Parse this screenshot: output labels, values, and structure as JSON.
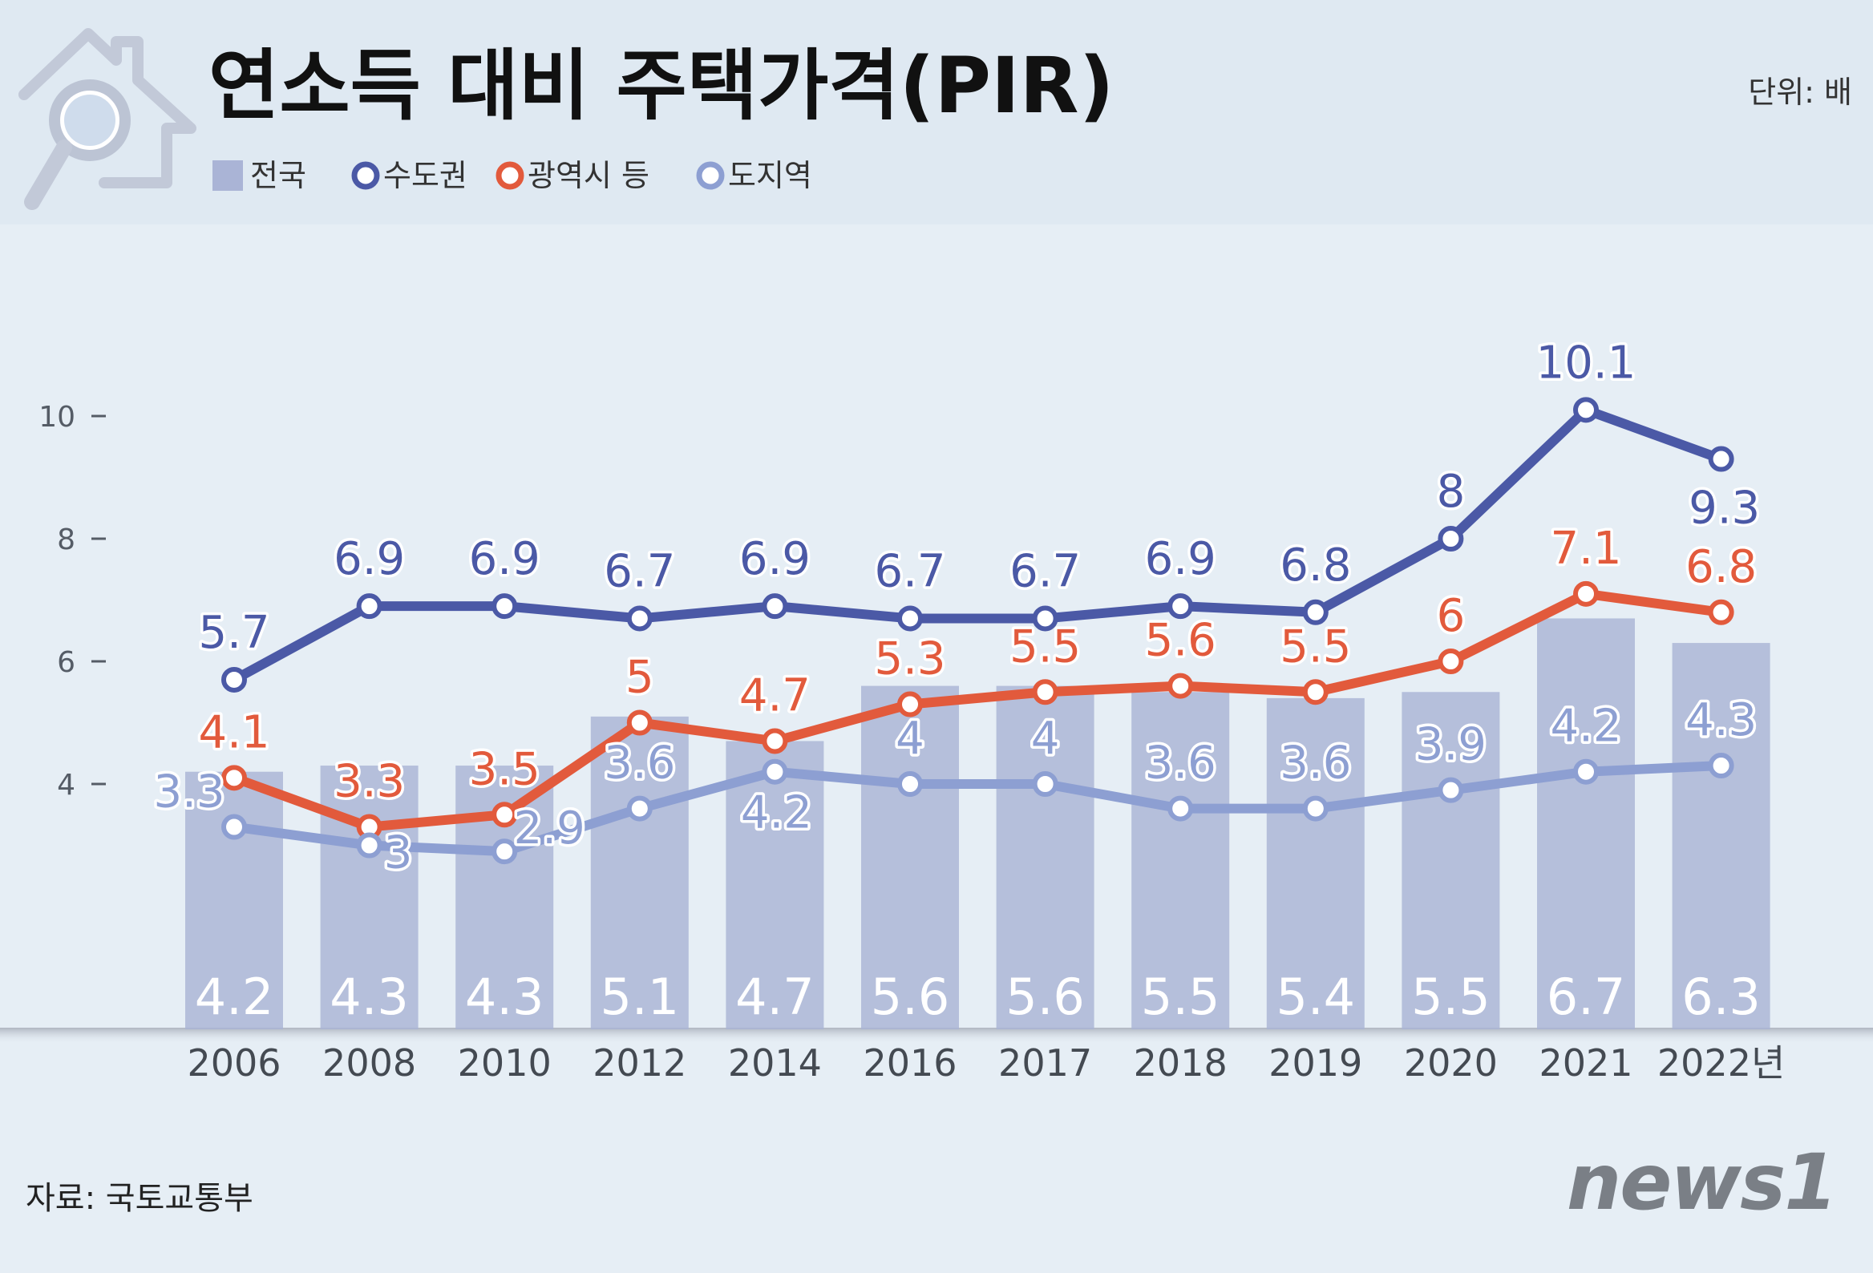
{
  "header": {
    "title": "연소득 대비 주택가격(PIR)",
    "unit": "단위: 배"
  },
  "legend": [
    {
      "label": "전국",
      "shape": "bar",
      "color": "#aab4d6"
    },
    {
      "label": "수도권",
      "shape": "ring",
      "color": "#4b59a6"
    },
    {
      "label": "광역시 등",
      "shape": "ring",
      "color": "#e25a3c"
    },
    {
      "label": "도지역",
      "shape": "ring",
      "color": "#8d9fd2"
    }
  ],
  "footer": {
    "source": "자료: 국토교통부",
    "logo_text": "news1"
  },
  "chart_data": {
    "type": "bar",
    "title": "연소득 대비 주택가격(PIR)",
    "unit": "단위: 배",
    "categories": [
      "2006",
      "2008",
      "2010",
      "2012",
      "2014",
      "2016",
      "2017",
      "2018",
      "2019",
      "2020",
      "2021",
      "2022년"
    ],
    "ylim": [
      0,
      10.6
    ],
    "yticks": [
      4,
      6,
      8,
      10
    ],
    "grid": false,
    "legend_position": "top-left",
    "series": [
      {
        "name": "전국",
        "type": "bar",
        "color": "#aab4d6",
        "values": [
          4.2,
          4.3,
          4.3,
          5.1,
          4.7,
          5.6,
          5.6,
          5.5,
          5.4,
          5.5,
          6.7,
          6.3
        ]
      },
      {
        "name": "수도권",
        "type": "line",
        "color": "#4b59a6",
        "values": [
          5.7,
          6.9,
          6.9,
          6.7,
          6.9,
          6.7,
          6.7,
          6.9,
          6.8,
          8,
          10.1,
          9.3
        ]
      },
      {
        "name": "광역시 등",
        "type": "line",
        "color": "#e25a3c",
        "values": [
          4.1,
          3.3,
          3.5,
          5,
          4.7,
          5.3,
          5.5,
          5.6,
          5.5,
          6,
          7.1,
          6.8
        ]
      },
      {
        "name": "도지역",
        "type": "line",
        "color": "#8d9fd2",
        "values": [
          3.3,
          3,
          2.9,
          3.6,
          4.2,
          4,
          4,
          3.6,
          3.6,
          3.9,
          4.2,
          4.3
        ]
      }
    ]
  }
}
